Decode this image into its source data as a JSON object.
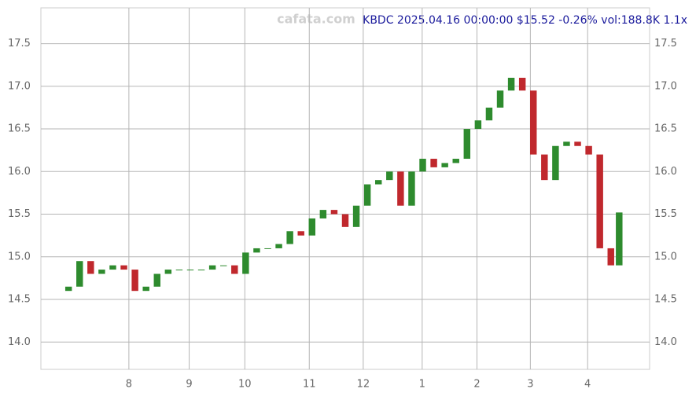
{
  "chart_data": {
    "type": "candlestick",
    "title": "KBDC 2025.04.16 00:00:00 $15.52 -0.26% vol:188.8K 1.1x",
    "watermark": "cafata.com",
    "x": [
      0,
      4,
      8,
      12,
      16,
      20,
      24,
      28,
      32,
      36,
      40,
      44,
      48,
      52,
      56,
      60,
      64,
      68,
      72,
      76,
      80,
      84,
      88,
      92,
      96,
      100,
      104,
      108,
      112,
      116,
      120,
      124,
      128,
      132,
      136,
      140,
      144,
      148,
      152,
      156,
      160,
      164,
      168,
      172,
      176,
      180,
      184,
      188,
      192,
      196,
      199
    ],
    "open": [
      14.6,
      14.65,
      14.95,
      14.8,
      14.85,
      14.9,
      14.85,
      14.6,
      14.65,
      14.8,
      14.85,
      14.85,
      14.85,
      14.85,
      14.9,
      14.9,
      14.8,
      15.05,
      15.1,
      15.1,
      15.15,
      15.3,
      15.25,
      15.45,
      15.55,
      15.5,
      15.35,
      15.6,
      15.85,
      15.9,
      16.0,
      15.6,
      16.0,
      16.15,
      16.05,
      16.1,
      16.15,
      16.5,
      16.6,
      16.75,
      16.95,
      17.1,
      16.95,
      16.2,
      15.9,
      16.3,
      16.35,
      16.3,
      16.2,
      15.1,
      14.9
    ],
    "close": [
      14.65,
      14.95,
      14.8,
      14.85,
      14.9,
      14.85,
      14.6,
      14.65,
      14.8,
      14.85,
      14.85,
      14.85,
      14.85,
      14.9,
      14.9,
      14.8,
      15.05,
      15.1,
      15.1,
      15.15,
      15.3,
      15.25,
      15.45,
      15.55,
      15.5,
      15.35,
      15.6,
      15.85,
      15.9,
      16.0,
      15.6,
      16.0,
      16.15,
      16.05,
      16.1,
      16.15,
      16.5,
      16.6,
      16.75,
      16.95,
      17.1,
      16.95,
      16.2,
      15.9,
      16.3,
      16.35,
      16.3,
      16.2,
      15.1,
      14.9,
      15.52
    ],
    "up_color": "#2e8b2e",
    "down_color": "#c0282d",
    "xlim": [
      -10,
      210
    ],
    "ylim": [
      13.68,
      17.92
    ],
    "xticks": [
      {
        "value": 21.8,
        "label": "8"
      },
      {
        "value": 43.6,
        "label": "9"
      },
      {
        "value": 63.7,
        "label": "10"
      },
      {
        "value": 87.0,
        "label": "11"
      },
      {
        "value": 106.5,
        "label": "12"
      },
      {
        "value": 127.8,
        "label": "1"
      },
      {
        "value": 147.6,
        "label": "2"
      },
      {
        "value": 166.9,
        "label": "3"
      },
      {
        "value": 187.6,
        "label": "4"
      }
    ],
    "yticks": [
      {
        "value": 14,
        "label": "14.0"
      },
      14.5,
      {
        "value": 15,
        "label": "15.0"
      },
      15.5,
      {
        "value": 16,
        "label": "16.0"
      },
      16.5,
      {
        "value": 17,
        "label": "17.0"
      },
      17.5
    ],
    "grid": true
  }
}
